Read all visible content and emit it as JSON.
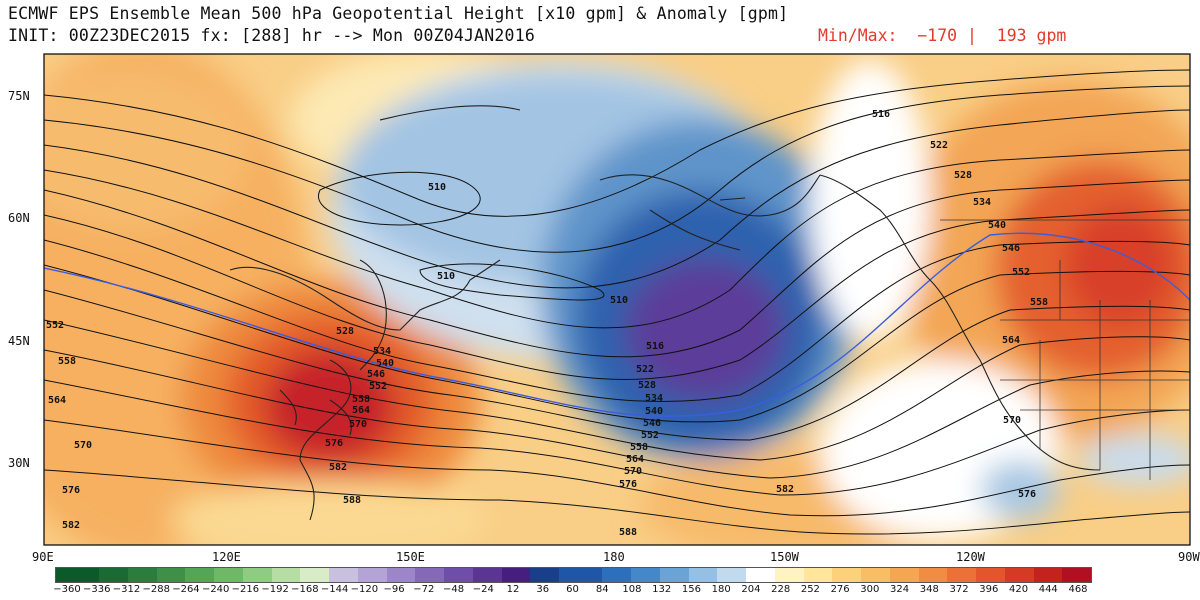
{
  "header": {
    "title_line1": "ECMWF EPS Ensemble Mean 500 hPa Geopotential Height [x10 gpm] & Anomaly [gpm]",
    "title_line2": "INIT: 00Z23DEC2015 fx: [288] hr --> Mon 00Z04JAN2016",
    "minmax": "Min/Max:  −170 |  193 gpm"
  },
  "map": {
    "lat_labels": [
      "75N",
      "60N",
      "45N",
      "30N"
    ],
    "lon_labels": [
      "90E",
      "120E",
      "150E",
      "180",
      "150W",
      "120W",
      "90W"
    ]
  },
  "contour_labels": [
    {
      "id": "c516a",
      "text": "516"
    },
    {
      "id": "c522a",
      "text": "522"
    },
    {
      "id": "c528a",
      "text": "528"
    },
    {
      "id": "c534a",
      "text": "534"
    },
    {
      "id": "c540a",
      "text": "540"
    },
    {
      "id": "c546a",
      "text": "546"
    },
    {
      "id": "c552a",
      "text": "552"
    },
    {
      "id": "c558a",
      "text": "558"
    },
    {
      "id": "c564a",
      "text": "564"
    },
    {
      "id": "c510a",
      "text": "510"
    },
    {
      "id": "c510b",
      "text": "510"
    },
    {
      "id": "c510c",
      "text": "510"
    },
    {
      "id": "c516b",
      "text": "516"
    },
    {
      "id": "c522b",
      "text": "522"
    },
    {
      "id": "c528b",
      "text": "528"
    },
    {
      "id": "c534b",
      "text": "534"
    },
    {
      "id": "c540b",
      "text": "540"
    },
    {
      "id": "c546b",
      "text": "546"
    },
    {
      "id": "c552b",
      "text": "552"
    },
    {
      "id": "c558b",
      "text": "558"
    },
    {
      "id": "c564b",
      "text": "564"
    },
    {
      "id": "c570b",
      "text": "570"
    },
    {
      "id": "c576b",
      "text": "576"
    },
    {
      "id": "c528c",
      "text": "528"
    },
    {
      "id": "c534c",
      "text": "534"
    },
    {
      "id": "c540c",
      "text": "540"
    },
    {
      "id": "c546c",
      "text": "546"
    },
    {
      "id": "c552c",
      "text": "552"
    },
    {
      "id": "c558c",
      "text": "558"
    },
    {
      "id": "c564c",
      "text": "564"
    },
    {
      "id": "c570c",
      "text": "570"
    },
    {
      "id": "c576c",
      "text": "576"
    },
    {
      "id": "c582c",
      "text": "582"
    },
    {
      "id": "c588c",
      "text": "588"
    },
    {
      "id": "c552d",
      "text": "552"
    },
    {
      "id": "c558d",
      "text": "558"
    },
    {
      "id": "c564d",
      "text": "564"
    },
    {
      "id": "c570d",
      "text": "570"
    },
    {
      "id": "c576d",
      "text": "576"
    },
    {
      "id": "c582d",
      "text": "582"
    },
    {
      "id": "c582e",
      "text": "582"
    },
    {
      "id": "c588e",
      "text": "588"
    },
    {
      "id": "c570e",
      "text": "570"
    },
    {
      "id": "c576e",
      "text": "576"
    }
  ],
  "colorbar": {
    "labels": [
      "−360",
      "−336",
      "−312",
      "−288",
      "−264",
      "−240",
      "−216",
      "−192",
      "−168",
      "−144",
      "−120",
      "−96",
      "−72",
      "−48",
      "−24",
      "12",
      "36",
      "60",
      "84",
      "108",
      "132",
      "156",
      "180",
      "204",
      "228",
      "252",
      "276",
      "300",
      "324",
      "348",
      "372",
      "396",
      "420",
      "444",
      "468"
    ],
    "colors": [
      "#0b5a2a",
      "#1a6b33",
      "#2b7d3d",
      "#3e9048",
      "#55a557",
      "#6eb868",
      "#8fcb82",
      "#b6dda3",
      "#d9ecc8",
      "#c9c0e0",
      "#b3a4d5",
      "#9c86c7",
      "#8569b9",
      "#6f4ea9",
      "#5a3594",
      "#451e80",
      "#1a3e8a",
      "#1f56a6",
      "#2b6fbd",
      "#4588c9",
      "#6aa3d5",
      "#95bfe3",
      "#c2daee",
      "#ffffff",
      "#fff3c4",
      "#ffe69a",
      "#fbd27a",
      "#f9bd63",
      "#f6a650",
      "#f28c42",
      "#ec7136",
      "#e3552b",
      "#d53a24",
      "#c4221f",
      "#b01022"
    ]
  }
}
